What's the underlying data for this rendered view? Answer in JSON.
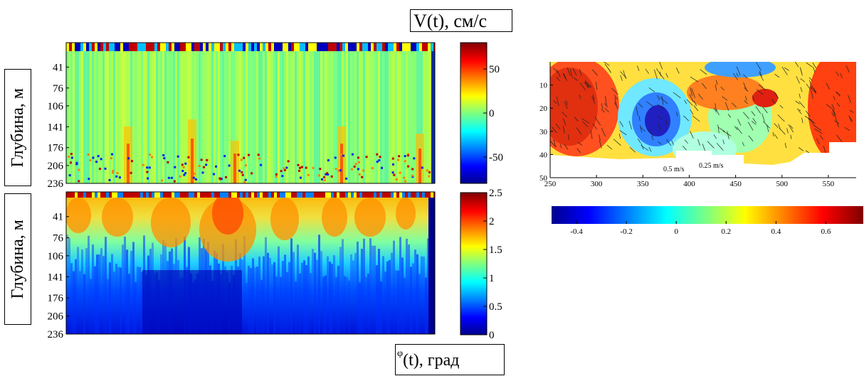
{
  "labels": {
    "top_right_box": "V(t), см/с",
    "bottom_right_prefix": "φ",
    "bottom_right_rest": "(t), град",
    "ylabel_top": "Глубина, м",
    "ylabel_bottom": "Глубина, м"
  },
  "chart_data": [
    {
      "type": "heatmap",
      "title": "V(t), см/с",
      "ylabel": "Глубина, м",
      "y_ticks": [
        41,
        76,
        106,
        141,
        176,
        206,
        236
      ],
      "ylim": [
        0,
        236
      ],
      "colorbar": {
        "ticks": [
          50,
          0,
          -50
        ],
        "range": [
          -80,
          80
        ]
      },
      "colormap": "jet"
    },
    {
      "type": "heatmap",
      "title": "φ(t), град",
      "ylabel": "Глубина, м",
      "y_ticks": [
        41,
        76,
        106,
        141,
        176,
        206,
        236
      ],
      "ylim": [
        0,
        236
      ],
      "colorbar": {
        "ticks": [
          2.5,
          2,
          1.5,
          1,
          0.5,
          0
        ],
        "range": [
          0,
          2.5
        ]
      },
      "colormap": "jet"
    },
    {
      "type": "heatmap",
      "x_ticks": [
        250,
        300,
        350,
        400,
        450,
        500,
        550
      ],
      "y_ticks": [
        10,
        20,
        30,
        40,
        50
      ],
      "xlim": [
        250,
        580
      ],
      "ylim": [
        0,
        50
      ],
      "annotations": [
        "0.5 m/s",
        "0.25 m/s"
      ],
      "colorbar": {
        "ticks": [
          -0.4,
          -0.2,
          0,
          0.2,
          0.4,
          0.6
        ],
        "range": [
          -0.5,
          0.75
        ],
        "orientation": "horizontal"
      },
      "colormap": "jet"
    }
  ],
  "colors": {
    "jet_low": "#00008f",
    "jet_mid": "#7fff7f",
    "jet_high": "#800000"
  }
}
